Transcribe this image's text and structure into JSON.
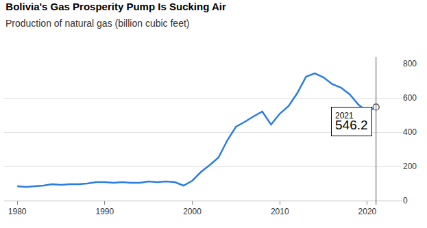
{
  "chart_data": {
    "type": "line",
    "title": "Bolivia's Gas Prosperity Pump Is Sucking Air",
    "subtitle": "Production of natural gas (billion cubic feet)",
    "x": [
      1980,
      1981,
      1982,
      1983,
      1984,
      1985,
      1986,
      1987,
      1988,
      1989,
      1990,
      1991,
      1992,
      1993,
      1994,
      1995,
      1996,
      1997,
      1998,
      1999,
      2000,
      2001,
      2002,
      2003,
      2004,
      2005,
      2006,
      2007,
      2008,
      2009,
      2010,
      2011,
      2012,
      2013,
      2014,
      2015,
      2016,
      2017,
      2018,
      2019,
      2020,
      2021
    ],
    "values": [
      84,
      80,
      84,
      88,
      96,
      92,
      96,
      96,
      100,
      108,
      108,
      104,
      108,
      104,
      104,
      112,
      108,
      112,
      108,
      88,
      116,
      168,
      208,
      252,
      352,
      432,
      460,
      492,
      520,
      444,
      508,
      552,
      628,
      724,
      744,
      720,
      680,
      660,
      620,
      560,
      520,
      546.2
    ],
    "color": "#2b7de0",
    "xlim": [
      1978.5,
      2024
    ],
    "xticks": [
      1980,
      1990,
      2000,
      2010,
      2020
    ],
    "ylim": [
      0,
      800
    ],
    "yticks": [
      0,
      200,
      400,
      600,
      800
    ],
    "grid": true,
    "annotations": [
      {
        "x": 2021,
        "y": 546.2,
        "text": "2021"
      }
    ]
  }
}
